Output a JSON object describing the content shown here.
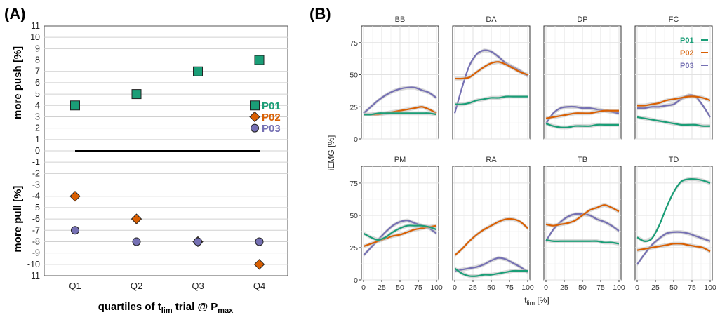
{
  "colors": {
    "P01": "#1a9e77",
    "P02": "#d95f02",
    "P03": "#7570b3"
  },
  "panelA": {
    "label": "(A)",
    "chart_data": {
      "type": "scatter",
      "categories": [
        "Q1",
        "Q2",
        "Q3",
        "Q4"
      ],
      "series": [
        {
          "name": "P01",
          "marker": "square",
          "values": [
            4,
            5,
            7,
            8
          ]
        },
        {
          "name": "P02",
          "marker": "diamond",
          "values": [
            -4,
            -6,
            -8,
            -10
          ]
        },
        {
          "name": "P03",
          "marker": "circle",
          "values": [
            -7,
            -8,
            -8,
            -8
          ]
        }
      ],
      "ylim": [
        -11,
        11
      ],
      "yticks": [
        "11",
        "10",
        "9",
        "8",
        "7",
        "6",
        "5",
        "4",
        "3",
        "2",
        "1",
        "0",
        "-1",
        "-2",
        "-3",
        "-4",
        "-5",
        "-6",
        "-7",
        "-8",
        "-9",
        "-10",
        "-11"
      ],
      "ylabel_top": "more push [%]",
      "ylabel_bottom": "more pull [%]",
      "xlabel_main": "quartiles of t",
      "xlabel_sub1": "lim",
      "xlabel_mid": " trial @ P",
      "xlabel_sub2": "max",
      "legend_position": "right",
      "zero_line": true
    }
  },
  "panelB": {
    "label": "(B)",
    "chart_data": {
      "type": "line",
      "facets": [
        "BB",
        "DA",
        "DP",
        "FC",
        "PM",
        "RA",
        "TB",
        "TD"
      ],
      "x": [
        0,
        10,
        20,
        30,
        40,
        50,
        60,
        70,
        80,
        90,
        100
      ],
      "xticks": [
        "0",
        "25",
        "50",
        "75",
        "100"
      ],
      "yticks": [
        "0",
        "25",
        "50",
        "75"
      ],
      "ylim": [
        0,
        88
      ],
      "ylabel": "iEMG [%]",
      "xlabel_main": "t",
      "xlabel_sub": "lim",
      "xlabel_unit": " [%]",
      "legend": [
        "P01",
        "P02",
        "P03"
      ],
      "legend_position": "inside FC facet, top-right",
      "series": {
        "BB": {
          "P01": [
            19,
            19,
            20,
            20,
            20,
            20,
            20,
            20,
            20,
            20,
            19
          ],
          "P02": [
            19,
            19,
            19,
            20,
            21,
            22,
            23,
            24,
            25,
            23,
            20
          ],
          "P03": [
            20,
            25,
            30,
            34,
            37,
            39,
            40,
            40,
            38,
            36,
            32
          ]
        },
        "DA": {
          "P01": [
            27,
            27,
            28,
            30,
            31,
            32,
            32,
            33,
            33,
            33,
            33
          ],
          "P02": [
            47,
            47,
            48,
            52,
            56,
            59,
            60,
            58,
            55,
            52,
            50
          ],
          "P03": [
            20,
            40,
            57,
            66,
            69,
            68,
            64,
            59,
            56,
            53,
            49
          ]
        },
        "DP": {
          "P01": [
            12,
            10,
            9,
            9,
            10,
            10,
            10,
            11,
            11,
            11,
            11
          ],
          "P02": [
            16,
            17,
            18,
            19,
            20,
            20,
            20,
            21,
            22,
            22,
            22
          ],
          "P03": [
            12,
            20,
            24,
            25,
            25,
            24,
            24,
            23,
            22,
            21,
            20
          ]
        },
        "FC": {
          "P01": [
            17,
            16,
            15,
            14,
            13,
            12,
            11,
            11,
            11,
            10,
            10
          ],
          "P02": [
            26,
            26,
            27,
            28,
            30,
            31,
            32,
            33,
            33,
            32,
            30
          ],
          "P03": [
            24,
            24,
            25,
            25,
            26,
            27,
            31,
            34,
            33,
            26,
            17
          ]
        },
        "PM": {
          "P01": [
            36,
            33,
            31,
            33,
            37,
            40,
            42,
            42,
            42,
            41,
            39
          ],
          "P02": [
            26,
            28,
            30,
            32,
            34,
            35,
            37,
            39,
            40,
            41,
            42
          ],
          "P03": [
            19,
            25,
            31,
            37,
            42,
            45,
            46,
            44,
            42,
            40,
            36
          ]
        },
        "RA": {
          "P01": [
            9,
            5,
            3,
            3,
            4,
            4,
            5,
            6,
            7,
            7,
            7
          ],
          "P02": [
            19,
            24,
            30,
            35,
            39,
            42,
            45,
            47,
            47,
            45,
            40
          ],
          "P03": [
            7,
            8,
            9,
            10,
            12,
            15,
            17,
            16,
            13,
            10,
            6
          ]
        },
        "TB": {
          "P01": [
            31,
            30,
            30,
            30,
            30,
            30,
            30,
            30,
            29,
            29,
            28
          ],
          "P02": [
            43,
            42,
            43,
            44,
            46,
            50,
            54,
            56,
            58,
            56,
            53
          ],
          "P03": [
            30,
            39,
            45,
            49,
            51,
            51,
            50,
            47,
            45,
            42,
            38
          ]
        },
        "TD": {
          "P01": [
            33,
            30,
            32,
            42,
            56,
            68,
            76,
            78,
            78,
            77,
            75
          ],
          "P02": [
            23,
            24,
            25,
            26,
            27,
            28,
            28,
            27,
            26,
            25,
            22
          ],
          "P03": [
            12,
            20,
            27,
            32,
            36,
            37,
            37,
            36,
            34,
            32,
            30
          ]
        }
      }
    }
  }
}
